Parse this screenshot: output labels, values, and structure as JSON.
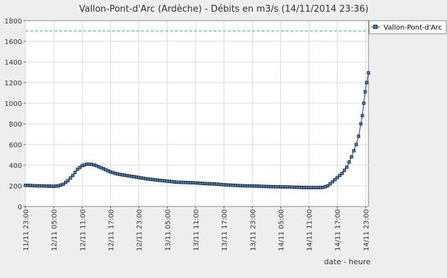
{
  "chart_data": {
    "type": "line",
    "title": "Vallon-Pont-d'Arc (Ardèche) - Débits en m3/s (14/11/2014 23:36)",
    "xlabel": "date - heure",
    "ylabel": "",
    "ylim": [
      0,
      1800
    ],
    "yticks": [
      0,
      200,
      400,
      600,
      800,
      1000,
      1200,
      1400,
      1600,
      1800
    ],
    "x_tick_labels": [
      "11/11 23:00",
      "12/11 05:00",
      "12/11 11:00",
      "12/11 17:00",
      "12/11 23:00",
      "13/11 05:00",
      "13/11 11:00",
      "13/11 17:00",
      "13/11 23:00",
      "14/11 05:00",
      "14/11 11:00",
      "14/11 17:00",
      "14/11 23:00"
    ],
    "x_unit": "hours after 11/11 23:00",
    "xlim": [
      0,
      72.6
    ],
    "grid": true,
    "legend_position": "top-right",
    "reference_line": {
      "value": 1700,
      "color": "#2aa3b8"
    },
    "series": [
      {
        "name": "Vallon-Pont-d'Arc",
        "color": "#1e3a8a",
        "marker_color": "#4a7ab8",
        "x": [
          0,
          2,
          4,
          6,
          7,
          8,
          9,
          10,
          11,
          12,
          13,
          14,
          15,
          16,
          17,
          18,
          19,
          20,
          22,
          24,
          26,
          28,
          30,
          32,
          34,
          36,
          38,
          40,
          42,
          44,
          46,
          48,
          50,
          52,
          54,
          56,
          58,
          60,
          62,
          63,
          64,
          65,
          66,
          67,
          68,
          68.5,
          69,
          69.5,
          70,
          70.5,
          71,
          71.3,
          71.6,
          71.9,
          72.2,
          72.6
        ],
        "values": [
          205,
          200,
          198,
          195,
          200,
          215,
          250,
          300,
          360,
          395,
          410,
          408,
          395,
          375,
          355,
          335,
          320,
          310,
          295,
          280,
          265,
          255,
          245,
          235,
          232,
          228,
          222,
          218,
          210,
          205,
          200,
          198,
          195,
          192,
          190,
          188,
          185,
          182,
          182,
          185,
          200,
          240,
          280,
          320,
          380,
          430,
          480,
          540,
          600,
          680,
          800,
          880,
          1000,
          1110,
          1200,
          1295
        ]
      }
    ]
  }
}
